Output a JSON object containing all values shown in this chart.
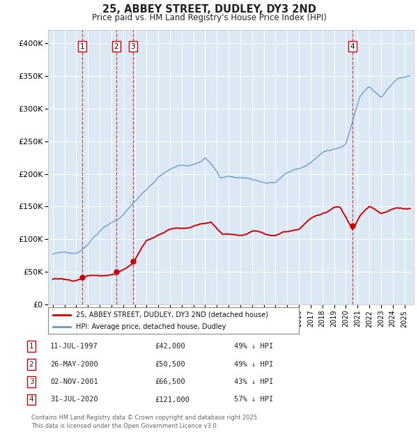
{
  "title": "25, ABBEY STREET, DUDLEY, DY3 2ND",
  "subtitle": "Price paid vs. HM Land Registry's House Price Index (HPI)",
  "fig_bg_color": "#ffffff",
  "plot_bg_color": "#dce9f5",
  "ylim": [
    0,
    420000
  ],
  "yticks": [
    0,
    50000,
    100000,
    150000,
    200000,
    250000,
    300000,
    350000,
    400000
  ],
  "ytick_labels": [
    "£0",
    "£50K",
    "£100K",
    "£150K",
    "£200K",
    "£250K",
    "£300K",
    "£350K",
    "£400K"
  ],
  "xlim_start": 1994.6,
  "xlim_end": 2025.8,
  "sale_dates": [
    1997.53,
    2000.4,
    2001.84,
    2020.58
  ],
  "sale_prices": [
    42000,
    50500,
    66500,
    121000
  ],
  "sale_labels": [
    "1",
    "2",
    "3",
    "4"
  ],
  "sale_color": "#cc0000",
  "hpi_color": "#6699cc",
  "legend_label_red": "25, ABBEY STREET, DUDLEY, DY3 2ND (detached house)",
  "legend_label_blue": "HPI: Average price, detached house, Dudley",
  "table_entries": [
    {
      "num": "1",
      "date": "11-JUL-1997",
      "price": "£42,000",
      "pct": "49% ↓ HPI"
    },
    {
      "num": "2",
      "date": "26-MAY-2000",
      "price": "£50,500",
      "pct": "49% ↓ HPI"
    },
    {
      "num": "3",
      "date": "02-NOV-2001",
      "price": "£66,500",
      "pct": "43% ↓ HPI"
    },
    {
      "num": "4",
      "date": "31-JUL-2020",
      "price": "£121,000",
      "pct": "57% ↓ HPI"
    }
  ],
  "footnote": "Contains HM Land Registry data © Crown copyright and database right 2025.\nThis data is licensed under the Open Government Licence v3.0."
}
